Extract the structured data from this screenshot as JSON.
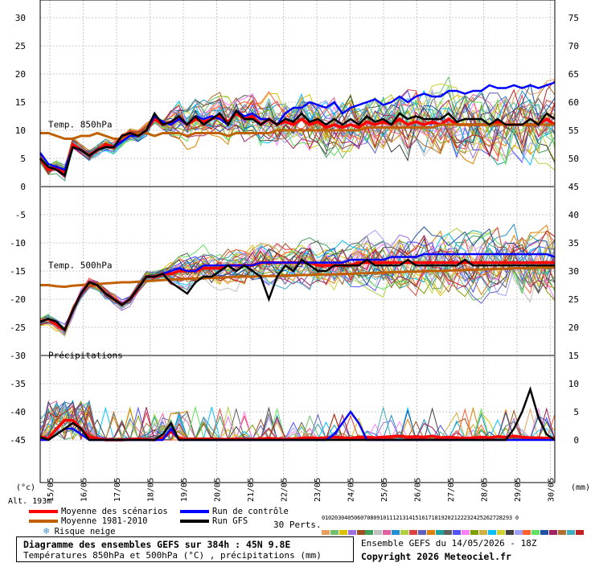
{
  "chart_data": {
    "type": "line",
    "x_dates": [
      "15/05",
      "16/05",
      "17/05",
      "18/05",
      "19/05",
      "20/05",
      "21/05",
      "22/05",
      "23/05",
      "24/05",
      "25/05",
      "26/05",
      "27/05",
      "28/05",
      "29/05",
      "30/05"
    ],
    "y_unit_left": "(°c)",
    "y_unit_right": "(mm)",
    "left_ticks": [
      30,
      25,
      20,
      15,
      10,
      5,
      0,
      -5,
      -10,
      -15,
      -20,
      -25,
      -30,
      -35,
      -40,
      -45
    ],
    "right_ticks": [
      75,
      70,
      65,
      60,
      55,
      50,
      45,
      40,
      35,
      30,
      25,
      20,
      15,
      10,
      5,
      0
    ],
    "panels": [
      {
        "label": "Temp. 850hPa"
      },
      {
        "label": "Temp. 500hPa"
      },
      {
        "label": "Précipitations"
      }
    ],
    "altitude_label": "Alt. 193m",
    "grid": true,
    "series": [
      {
        "name": "Moyenne des scénarios",
        "color": "#ff0000",
        "t850": [
          5,
          3,
          3.5,
          2.5,
          7.5,
          6.5,
          5.5,
          6.5,
          7.5,
          7,
          8.5,
          9.5,
          9,
          10,
          12,
          11,
          11.5,
          12,
          11,
          12,
          11.5,
          12,
          12.5,
          11.5,
          13,
          12,
          12.5,
          11,
          12,
          11,
          11.5,
          11,
          12,
          11,
          11.5,
          10.5,
          11,
          10.5,
          11,
          10.5,
          11.5,
          11,
          11.5,
          11,
          12,
          11,
          11.5,
          11,
          11.5,
          11,
          12,
          11,
          11,
          11,
          11,
          11,
          11.5,
          11,
          11,
          11,
          11,
          11,
          12,
          11
        ],
        "t500": [
          -24,
          -23.5,
          -24.5,
          -25.5,
          -22,
          -19,
          -17,
          -17.5,
          -19,
          -20,
          -21,
          -20,
          -18,
          -16,
          -16,
          -15.5,
          -15.5,
          -15,
          -15,
          -15,
          -14.5,
          -14.5,
          -14.5,
          -14,
          -14,
          -14,
          -14,
          -13.5,
          -13.5,
          -13.5,
          -13.5,
          -13.5,
          -13.5,
          -13.5,
          -14,
          -14,
          -14,
          -14,
          -14,
          -13.5,
          -13.5,
          -13.5,
          -13.5,
          -13.5,
          -13.5,
          -13.5,
          -13.5,
          -13.5,
          -13.5,
          -13.5,
          -13.5,
          -13.5,
          -13.5,
          -13.5,
          -13.5,
          -13.5,
          -13.5,
          -13.5,
          -13.5,
          -13.5,
          -13.5,
          -13.5,
          -13.5,
          -13.5
        ],
        "precip": [
          0.5,
          0.3,
          2,
          3.5,
          3.5,
          2,
          0.5,
          0.3,
          0,
          0,
          0,
          0.1,
          0.2,
          0.1,
          0,
          0.3,
          1.5,
          0.3,
          0.1,
          0.2,
          0.1,
          0.2,
          0.1,
          0.1,
          0.2,
          0.1,
          0.1,
          0.2,
          0.3,
          0.2,
          0.1,
          0.2,
          0.3,
          0.4,
          0.3,
          0.4,
          0.5,
          0.4,
          0.3,
          0.5,
          0.5,
          0.4,
          0.5,
          0.6,
          0.7,
          0.5,
          0.6,
          0.5,
          0.7,
          0.4,
          0.5,
          0.4,
          0.3,
          0.4,
          0.5,
          0.4,
          0.6,
          0.5,
          0.7,
          0.5,
          0.4,
          0.4,
          0.3,
          0.3
        ]
      },
      {
        "name": "Moyenne 1981-2010",
        "color": "#c06000",
        "t850": [
          9.5,
          9.5,
          9,
          8.5,
          8.5,
          9,
          9,
          9.5,
          9,
          8.5,
          8.5,
          9,
          9.5,
          9.5,
          9,
          9.5,
          9.5,
          9.5,
          9,
          9.5,
          9.5,
          9.5,
          9.5,
          9,
          9.5,
          9.5,
          9.5,
          9.5,
          9.5,
          10,
          10,
          10,
          10,
          10,
          10,
          10,
          10,
          10,
          10,
          10,
          10.5,
          10.5,
          10.5,
          10.5,
          10.5,
          10.5,
          10.5,
          10.5,
          10.5,
          11,
          11,
          11,
          11,
          11,
          11,
          11,
          11,
          11,
          11,
          11,
          11,
          11,
          11,
          11
        ],
        "t500": [
          -17.5,
          -17.5,
          -17.7,
          -17.8,
          -17.6,
          -17.5,
          -17.4,
          -17.3,
          -17.2,
          -17.1,
          -17,
          -17,
          -16.9,
          -16.8,
          -16.7,
          -16.6,
          -16.5,
          -16.5,
          -16.4,
          -16.3,
          -16.3,
          -16.2,
          -16.2,
          -16.1,
          -16,
          -16,
          -16,
          -15.9,
          -15.9,
          -15.9,
          -15.8,
          -15.8,
          -15.7,
          -15.7,
          -15.6,
          -15.6,
          -15.6,
          -15.5,
          -15.5,
          -15.4,
          -15.4,
          -15.3,
          -15.3,
          -15.2,
          -15.2,
          -15.1,
          -15.1,
          -15,
          -15,
          -15,
          -14.9,
          -14.9,
          -14.8,
          -14.8,
          -14.7,
          -14.7,
          -14.6,
          -14.6,
          -14.5,
          -14.5,
          -14.5,
          -14.4,
          -14.4,
          -14.4
        ]
      },
      {
        "name": "Run de contrôle",
        "color": "#0000ff",
        "t850": [
          6,
          4,
          3.5,
          3,
          7,
          6.5,
          5.5,
          6.5,
          7,
          7,
          8,
          9,
          9,
          10,
          12.5,
          11.5,
          11,
          12,
          11,
          12.5,
          12,
          12.5,
          12,
          11,
          13.5,
          12.5,
          13,
          12,
          12,
          11,
          13,
          14,
          14,
          15,
          14.5,
          14,
          15,
          13,
          14,
          14.5,
          15,
          15.5,
          14.5,
          15,
          16,
          15,
          16,
          16.5,
          16,
          16,
          17,
          17,
          16.5,
          17,
          17,
          18,
          17.5,
          17.5,
          18,
          17.5,
          18,
          17.5,
          18,
          18.5
        ],
        "t500": [
          -24,
          -23.5,
          -24,
          -25.5,
          -22,
          -19,
          -17,
          -17.5,
          -19,
          -20,
          -21,
          -20,
          -18,
          -16,
          -16,
          -15.5,
          -15,
          -14.5,
          -15,
          -15,
          -14,
          -14,
          -14,
          -14,
          -14,
          -14,
          -14,
          -13.5,
          -13.5,
          -13.5,
          -13.5,
          -13.5,
          -13.5,
          -13.5,
          -13.5,
          -13.5,
          -13.5,
          -13.5,
          -13,
          -13,
          -13,
          -13,
          -13,
          -12.5,
          -12.5,
          -12.5,
          -12.5,
          -12,
          -12,
          -12,
          -12,
          -12,
          -12,
          -12,
          -12,
          -12,
          -12,
          -12,
          -12,
          -12,
          -12,
          -12,
          -12,
          -12.5
        ],
        "precip": [
          0,
          0,
          1,
          2,
          2,
          1,
          0,
          0,
          0,
          0,
          0,
          0,
          0,
          0,
          0,
          0,
          2,
          0,
          0,
          0,
          0,
          0,
          0,
          0,
          0,
          0,
          0,
          0,
          0,
          0,
          0,
          0,
          0,
          0,
          0,
          0,
          1,
          3,
          5,
          3,
          0,
          0,
          0,
          0,
          0,
          0,
          0,
          0,
          0,
          0,
          0,
          0,
          0,
          0,
          0,
          0,
          0,
          0,
          0,
          0,
          0,
          0,
          0,
          0
        ]
      },
      {
        "name": "Run GFS",
        "color": "#000000",
        "t850": [
          5,
          3.5,
          3,
          2,
          7,
          6.5,
          5.5,
          6.5,
          7,
          7,
          9,
          9.5,
          9,
          10,
          13,
          11,
          11.5,
          12.5,
          11,
          12.5,
          11,
          12,
          13,
          11,
          13.5,
          12,
          12,
          11,
          12,
          11,
          12,
          11.5,
          13,
          11.5,
          12,
          11,
          12,
          11,
          12,
          11,
          12.5,
          11.5,
          12,
          11,
          13,
          12,
          12.5,
          12,
          12,
          12,
          13,
          11.5,
          12,
          12,
          12,
          11,
          12,
          11,
          11,
          11,
          12,
          11,
          13,
          12
        ],
        "t500": [
          -24,
          -23.5,
          -24,
          -25.5,
          -22,
          -19,
          -17,
          -17.5,
          -19,
          -20,
          -21,
          -20,
          -18,
          -16,
          -16,
          -15.5,
          -17,
          -18,
          -19,
          -17,
          -16,
          -16,
          -15,
          -14,
          -15,
          -14,
          -15,
          -16,
          -20,
          -16,
          -14,
          -15,
          -13,
          -14,
          -15,
          -15,
          -14,
          -14,
          -14,
          -14,
          -13,
          -14,
          -14,
          -14,
          -14,
          -13,
          -14,
          -14,
          -14,
          -14,
          -14,
          -14,
          -13,
          -14,
          -14,
          -14,
          -14,
          -14,
          -14,
          -14,
          -14,
          -14,
          -14,
          -14
        ],
        "precip": [
          0.5,
          0,
          1,
          2,
          3,
          2,
          0,
          0,
          0,
          0,
          0,
          0,
          0,
          0,
          0,
          1,
          3,
          0,
          0,
          0,
          0,
          0,
          0,
          0,
          0,
          0,
          0,
          0,
          0,
          0,
          0,
          0,
          0,
          0,
          0,
          0,
          0,
          0,
          0,
          0,
          0,
          0,
          0,
          0,
          0,
          0,
          0,
          0,
          0,
          0,
          0,
          0,
          0,
          0,
          0,
          0,
          0,
          0,
          2,
          5,
          9,
          4,
          1,
          0
        ]
      }
    ],
    "members_count": 30,
    "member_colors": [
      "#e8a060",
      "#70c070",
      "#e0c000",
      "#a070e0",
      "#a05020",
      "#40a060",
      "#c0c0c0",
      "#e060a0",
      "#2090d0",
      "#b0d040",
      "#e04040",
      "#6060c0",
      "#e08000",
      "#20a0a0",
      "#606060",
      "#5050ff",
      "#ff80ff",
      "#80a000",
      "#d0b040",
      "#00c0ff",
      "#d0d030",
      "#404040",
      "#a0a0ff",
      "#ff6030",
      "#60e060",
      "#2050a0",
      "#a02060",
      "#b07030",
      "#40b0c0",
      "#c02020"
    ]
  },
  "legend": {
    "mean_label": "Moyenne des scénarios",
    "clim_label": "Moyenne 1981-2010",
    "snow_label": "Risque neige",
    "control_label": "Run de contrôle",
    "gfs_label": "Run GFS",
    "perts_label": "30 Perts.",
    "perts_numbers": "01020304050607080910111213141516171819202122232425262728293 0"
  },
  "footer": {
    "title": "Diagramme des ensembles GEFS sur 384h : 45N 9.8E",
    "subtitle": "Températures 850hPa et 500hPa (°C) , précipitations (mm)",
    "run_info": "Ensemble GEFS du 14/05/2026 - 18Z",
    "copyright": "Copyright 2026 Meteociel.fr"
  }
}
